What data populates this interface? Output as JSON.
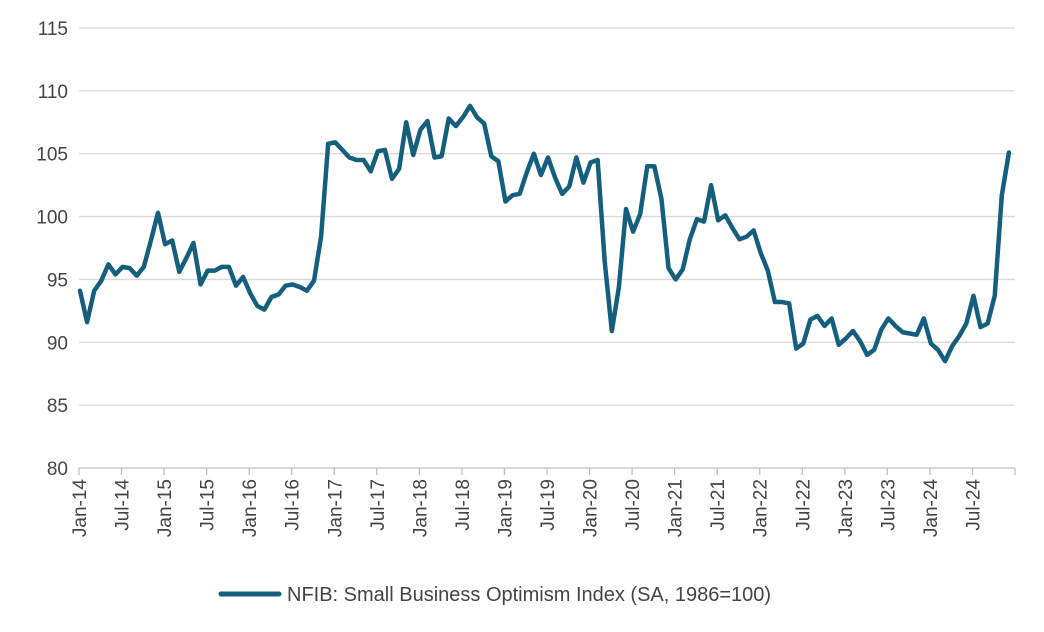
{
  "chart_data": {
    "type": "line",
    "title": "",
    "xlabel": "",
    "ylabel": "",
    "ylim": [
      80,
      115
    ],
    "yticks": [
      80,
      85,
      90,
      95,
      100,
      105,
      110,
      115
    ],
    "grid": true,
    "legend_position": "bottom",
    "x_tick_labels": [
      "Jan-14",
      "Jul-14",
      "Jan-15",
      "Jul-15",
      "Jan-16",
      "Jul-16",
      "Jan-17",
      "Jul-17",
      "Jan-18",
      "Jul-18",
      "Jan-19",
      "Jul-19",
      "Jan-20",
      "Jul-20",
      "Jan-21",
      "Jul-21",
      "Jan-22",
      "Jul-22",
      "Jan-23",
      "Jul-23",
      "Jan-24",
      "Jul-24"
    ],
    "start": "Jan-14",
    "frequency": "monthly",
    "series": [
      {
        "name": "NFIB: Small Business Optimism Index (SA, 1986=100)",
        "color": "#155f7e",
        "values": [
          94.1,
          91.6,
          94.1,
          94.9,
          96.2,
          95.4,
          96.0,
          95.9,
          95.3,
          96.0,
          98.1,
          100.3,
          97.8,
          98.1,
          95.6,
          96.7,
          97.9,
          94.6,
          95.7,
          95.7,
          96.0,
          96.0,
          94.5,
          95.2,
          93.9,
          92.9,
          92.6,
          93.6,
          93.8,
          94.5,
          94.6,
          94.4,
          94.1,
          94.9,
          98.4,
          105.8,
          105.9,
          105.3,
          104.7,
          104.5,
          104.5,
          103.6,
          105.2,
          105.3,
          103.0,
          103.8,
          107.5,
          104.9,
          106.9,
          107.6,
          104.7,
          104.8,
          107.8,
          107.2,
          107.9,
          108.8,
          107.9,
          107.4,
          104.8,
          104.4,
          101.2,
          101.7,
          101.8,
          103.5,
          105.0,
          103.3,
          104.7,
          103.1,
          101.8,
          102.4,
          104.7,
          102.7,
          104.3,
          104.5,
          96.4,
          90.9,
          94.4,
          100.6,
          98.8,
          100.2,
          104.0,
          104.0,
          101.4,
          95.9,
          95.0,
          95.8,
          98.2,
          99.8,
          99.6,
          102.5,
          99.7,
          100.1,
          99.1,
          98.2,
          98.4,
          98.9,
          97.1,
          95.7,
          93.2,
          93.2,
          93.1,
          89.5,
          89.9,
          91.8,
          92.1,
          91.3,
          91.9,
          89.8,
          90.3,
          90.9,
          90.1,
          89.0,
          89.4,
          91.0,
          91.9,
          91.3,
          90.8,
          90.7,
          90.6,
          91.9,
          89.9,
          89.4,
          88.5,
          89.7,
          90.5,
          91.5,
          93.7,
          91.2,
          91.5,
          93.7,
          101.7,
          105.1
        ]
      }
    ]
  }
}
